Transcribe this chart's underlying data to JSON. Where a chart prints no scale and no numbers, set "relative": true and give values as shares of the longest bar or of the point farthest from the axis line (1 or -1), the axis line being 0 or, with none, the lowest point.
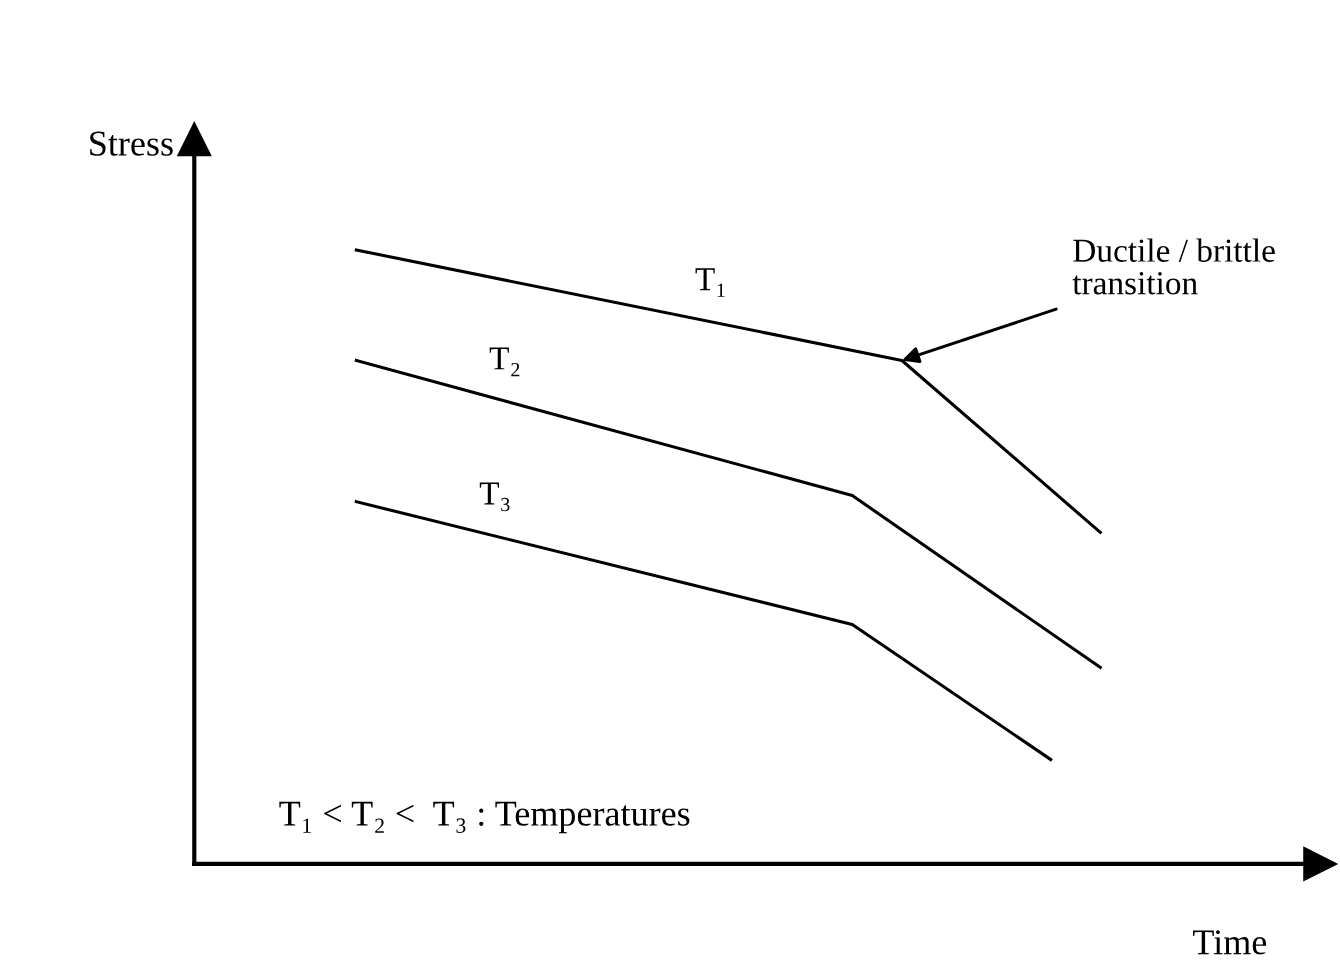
{
  "chart_data": {
    "type": "line",
    "relative": true,
    "xlabel": "Time",
    "legend": false,
    "marker": "none",
    "line_style": "solid",
    "tick_labels": false,
    "categories": [
      null,
      null,
      null,
      null,
      null,
      null,
      null,
      null,
      null,
      null,
      null,
      null,
      null,
      null,
      null,
      null
    ],
    "series": [
      {
        "name": "T₁",
        "color": "#000000",
        "values": [
          1.0,
          null,
          null,
          null,
          null,
          null,
          null,
          null,
          null,
          null,
          null,
          0.82,
          null,
          null,
          null,
          0.54
        ]
      },
      {
        "name": "T₂",
        "color": "#000000",
        "values": [
          0.82,
          null,
          null,
          null,
          null,
          null,
          null,
          null,
          null,
          null,
          0.6,
          null,
          null,
          null,
          null,
          0.32
        ]
      },
      {
        "name": "T₃",
        "color": "#000000",
        "values": [
          0.59,
          null,
          null,
          null,
          null,
          null,
          null,
          null,
          null,
          null,
          0.39,
          null,
          null,
          null,
          0.17,
          null
        ]
      }
    ],
    "annotations": [
      "Ductile / brittle\ntransition",
      "T₁ < T₂ <  T₃ : Temperatures",
      "Stress"
    ]
  }
}
